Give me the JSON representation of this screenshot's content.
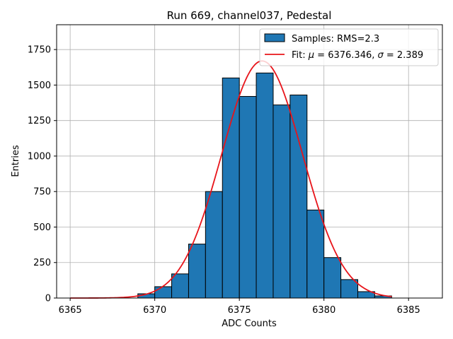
{
  "chart_data": {
    "type": "bar",
    "title": "Run 669, channel037, Pedestal",
    "xlabel": "ADC Counts",
    "ylabel": "Entries",
    "xlim": [
      6364.2,
      6387.0
    ],
    "ylim": [
      0,
      1925
    ],
    "xticks": [
      6365,
      6370,
      6375,
      6380,
      6385
    ],
    "yticks": [
      0,
      250,
      500,
      750,
      1000,
      1250,
      1500,
      1750
    ],
    "grid": true,
    "legend_position": "top-right",
    "bar_color": "#1f77b4",
    "fit_color": "#e8141a",
    "histogram": {
      "name": "Samples: RMS=2.3",
      "bin_edges": [
        6369.0,
        6370.0,
        6371.0,
        6372.0,
        6373.0,
        6374.0,
        6375.0,
        6376.0,
        6377.0,
        6378.0,
        6379.0,
        6380.0,
        6381.0,
        6382.0,
        6383.0,
        6384.0
      ],
      "counts": [
        30,
        80,
        170,
        380,
        750,
        1550,
        1420,
        1585,
        1360,
        1430,
        620,
        285,
        130,
        45,
        15
      ]
    },
    "fit": {
      "name_prefix": "Fit: ",
      "name_mu": "μ",
      "name_mid": " = 6376.346, ",
      "name_sigma": "σ",
      "name_suffix": " = 2.389",
      "mu": 6376.346,
      "sigma": 2.389,
      "amplitude": 1670,
      "x_range": [
        6365.0,
        6384.0
      ]
    }
  }
}
